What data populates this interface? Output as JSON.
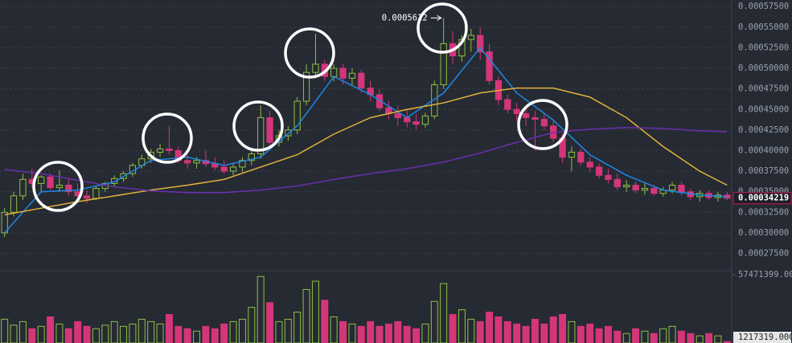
{
  "chart_data": {
    "type": "candlestick",
    "up_color": "#8fc142",
    "down_color": "#d4367a",
    "ma_lines": [
      {
        "color": "#1e88e5",
        "x": [
          0,
          4,
          8,
          12,
          16,
          20,
          24,
          28,
          32,
          36,
          40,
          44,
          48,
          52,
          56,
          60,
          64,
          68,
          72,
          76,
          79
        ],
        "values": [
          0.0003,
          0.00035,
          0.000352,
          0.000362,
          0.000388,
          0.000392,
          0.000382,
          0.000392,
          0.00043,
          0.00049,
          0.000468,
          0.00044,
          0.00047,
          0.000525,
          0.00047,
          0.000437,
          0.000395,
          0.00037,
          0.000352,
          0.000346,
          0.000344
        ]
      },
      {
        "color": "#e0b23a",
        "x": [
          0,
          4,
          8,
          12,
          16,
          20,
          24,
          28,
          32,
          36,
          40,
          44,
          48,
          52,
          56,
          60,
          64,
          68,
          72,
          76,
          79
        ],
        "values": [
          0.000322,
          0.00033,
          0.000338,
          0.000345,
          0.000352,
          0.000358,
          0.000365,
          0.00038,
          0.000395,
          0.00042,
          0.00044,
          0.00045,
          0.000458,
          0.00047,
          0.000476,
          0.000476,
          0.000465,
          0.00044,
          0.000405,
          0.000375,
          0.000358
        ]
      },
      {
        "color": "#6a2fb0",
        "x": [
          0,
          4,
          8,
          12,
          16,
          20,
          24,
          28,
          32,
          36,
          40,
          44,
          48,
          52,
          56,
          60,
          64,
          68,
          72,
          76,
          79
        ],
        "values": [
          0.000377,
          0.000372,
          0.000364,
          0.000356,
          0.000351,
          0.000349,
          0.000349,
          0.000352,
          0.000357,
          0.000365,
          0.000372,
          0.000378,
          0.000386,
          0.000397,
          0.00041,
          0.000422,
          0.000426,
          0.000428,
          0.000427,
          0.000424,
          0.000423
        ]
      }
    ],
    "open": [
      0.0003,
      0.000325,
      0.000345,
      0.000365,
      0.00036,
      0.000368,
      0.000355,
      0.000358,
      0.00035,
      0.000345,
      0.000342,
      0.000354,
      0.00036,
      0.000366,
      0.000372,
      0.000382,
      0.00039,
      0.000398,
      0.000402,
      0.0004,
      0.000388,
      0.000385,
      0.000388,
      0.000384,
      0.00038,
      0.000375,
      0.00038,
      0.000388,
      0.000396,
      0.00044,
      0.00041,
      0.000418,
      0.000425,
      0.00046,
      0.000495,
      0.000505,
      0.00049,
      0.0005,
      0.000488,
      0.000494,
      0.000476,
      0.000468,
      0.000452,
      0.000445,
      0.00044,
      0.000435,
      0.000432,
      0.000442,
      0.00048,
      0.00053,
      0.000515,
      0.000535,
      0.00054,
      0.00052,
      0.000485,
      0.000462,
      0.00045,
      0.000445,
      0.00044,
      0.000438,
      0.00043,
      0.000415,
      0.000392,
      0.000398,
      0.000386,
      0.00038,
      0.00037,
      0.000365,
      0.000356,
      0.000358,
      0.000352,
      0.000354,
      0.000348,
      0.000352,
      0.000358,
      0.00035,
      0.000344,
      0.000348,
      0.000343,
      0.000346
    ],
    "high": [
      0.00033,
      0.00035,
      0.000372,
      0.000378,
      0.00037,
      0.000372,
      0.000376,
      0.000365,
      0.00036,
      0.000352,
      0.000356,
      0.000362,
      0.00037,
      0.000375,
      0.000385,
      0.000395,
      0.000402,
      0.000408,
      0.00043,
      0.000405,
      0.000395,
      0.000392,
      0.0004,
      0.000392,
      0.000388,
      0.000385,
      0.000392,
      0.0004,
      0.000455,
      0.000448,
      0.000425,
      0.00043,
      0.000465,
      0.000505,
      0.000542,
      0.00051,
      0.000505,
      0.000505,
      0.0005,
      0.000498,
      0.000485,
      0.000475,
      0.00046,
      0.000455,
      0.00045,
      0.000445,
      0.000446,
      0.000485,
      0.0005612,
      0.000545,
      0.00054,
      0.000548,
      0.00055,
      0.00053,
      0.00049,
      0.000468,
      0.000458,
      0.000452,
      0.000448,
      0.000446,
      0.000436,
      0.00042,
      0.000405,
      0.000402,
      0.000392,
      0.000385,
      0.000378,
      0.000372,
      0.000364,
      0.000362,
      0.00036,
      0.000358,
      0.000356,
      0.000362,
      0.000362,
      0.000354,
      0.000352,
      0.000352,
      0.00035,
      0.00035
    ],
    "low": [
      0.000295,
      0.00032,
      0.00034,
      0.000355,
      0.00035,
      0.000352,
      0.00035,
      0.000345,
      0.000342,
      0.000336,
      0.00034,
      0.00035,
      0.000356,
      0.000362,
      0.000368,
      0.000378,
      0.000385,
      0.000392,
      0.000395,
      0.000385,
      0.000378,
      0.000378,
      0.00038,
      0.000376,
      0.000372,
      0.00037,
      0.000374,
      0.000382,
      0.00039,
      0.000405,
      0.000405,
      0.000412,
      0.00042,
      0.000455,
      0.000488,
      0.000485,
      0.000484,
      0.00048,
      0.000478,
      0.00047,
      0.00046,
      0.000448,
      0.000438,
      0.00043,
      0.000428,
      0.000426,
      0.000428,
      0.000438,
      0.000475,
      0.000505,
      0.000508,
      0.00052,
      0.00051,
      0.00048,
      0.000455,
      0.000445,
      0.000436,
      0.00043,
      0.0004,
      0.000425,
      0.00041,
      0.000385,
      0.000375,
      0.000382,
      0.000374,
      0.000366,
      0.00036,
      0.000352,
      0.00035,
      0.000348,
      0.000346,
      0.000345,
      0.000344,
      0.000348,
      0.000346,
      0.00034,
      0.000338,
      0.00034,
      0.000338,
      0.00034
    ],
    "close": [
      0.000325,
      0.000345,
      0.000365,
      0.00036,
      0.000368,
      0.000355,
      0.000358,
      0.00035,
      0.000345,
      0.000342,
      0.000354,
      0.00036,
      0.000366,
      0.000372,
      0.000382,
      0.00039,
      0.000398,
      0.000402,
      0.0004,
      0.000388,
      0.000385,
      0.000388,
      0.000384,
      0.00038,
      0.000375,
      0.00038,
      0.000388,
      0.000396,
      0.00044,
      0.00041,
      0.000418,
      0.000425,
      0.00046,
      0.000495,
      0.000505,
      0.00049,
      0.0005,
      0.000488,
      0.000494,
      0.000476,
      0.000468,
      0.000452,
      0.000445,
      0.00044,
      0.000435,
      0.000432,
      0.000442,
      0.00048,
      0.00053,
      0.000515,
      0.000535,
      0.00054,
      0.00052,
      0.000485,
      0.000462,
      0.00045,
      0.000445,
      0.00044,
      0.000438,
      0.00043,
      0.000415,
      0.000392,
      0.000398,
      0.000386,
      0.00038,
      0.00037,
      0.000365,
      0.000356,
      0.000358,
      0.000352,
      0.000354,
      0.000348,
      0.000352,
      0.000358,
      0.00035,
      0.000344,
      0.000348,
      0.000343,
      0.000346,
      0.00034219
    ],
    "volume": [
      20000000,
      15000000,
      18000000,
      12000000,
      14000000,
      22000000,
      16000000,
      12000000,
      18000000,
      14000000,
      12000000,
      15000000,
      18000000,
      14000000,
      16000000,
      20000000,
      18000000,
      16000000,
      24000000,
      14000000,
      12000000,
      10000000,
      14000000,
      12000000,
      16000000,
      18000000,
      20000000,
      30000000,
      56000000,
      34000000,
      18000000,
      20000000,
      26000000,
      45000000,
      52000000,
      36000000,
      22000000,
      18000000,
      16000000,
      14000000,
      18000000,
      14000000,
      16000000,
      18000000,
      14000000,
      12000000,
      16000000,
      35000000,
      50000000,
      24000000,
      28000000,
      20000000,
      18000000,
      26000000,
      22000000,
      18000000,
      16000000,
      14000000,
      20000000,
      16000000,
      22000000,
      24000000,
      18000000,
      14000000,
      16000000,
      12000000,
      14000000,
      10000000,
      8000000,
      12000000,
      10000000,
      8000000,
      12000000,
      14000000,
      10000000,
      8000000,
      6000000,
      8000000,
      6000000,
      1217319
    ],
    "ylim": [
      0.000256,
      0.000583
    ],
    "yticks": [
      {
        "value": 0.000275,
        "label": "0.00027500"
      },
      {
        "value": 0.0003,
        "label": "0.00030000"
      },
      {
        "value": 0.000325,
        "label": "0.00032500"
      },
      {
        "value": 0.00035,
        "label": "0.00035000"
      },
      {
        "value": 0.000375,
        "label": "0.00037500"
      },
      {
        "value": 0.0004,
        "label": "0.00040000"
      },
      {
        "value": 0.000425,
        "label": "0.00042500"
      },
      {
        "value": 0.00045,
        "label": "0.00045000"
      },
      {
        "value": 0.000475,
        "label": "0.00047500"
      },
      {
        "value": 0.0005,
        "label": "0.00050000"
      },
      {
        "value": 0.000525,
        "label": "0.00052500"
      },
      {
        "value": 0.00055,
        "label": "0.00055000"
      },
      {
        "value": 0.000575,
        "label": "0.00057500"
      }
    ],
    "volume_lim": [
      0,
      57471399
    ],
    "volume_ticks": [
      {
        "value": 57471399,
        "label": "57471399.000"
      }
    ],
    "last_price": 0.00034219,
    "last_volume": {
      "value": 1217319,
      "label": "1217319.000"
    },
    "max_annotation": 0.0005612,
    "grid": true
  }
}
